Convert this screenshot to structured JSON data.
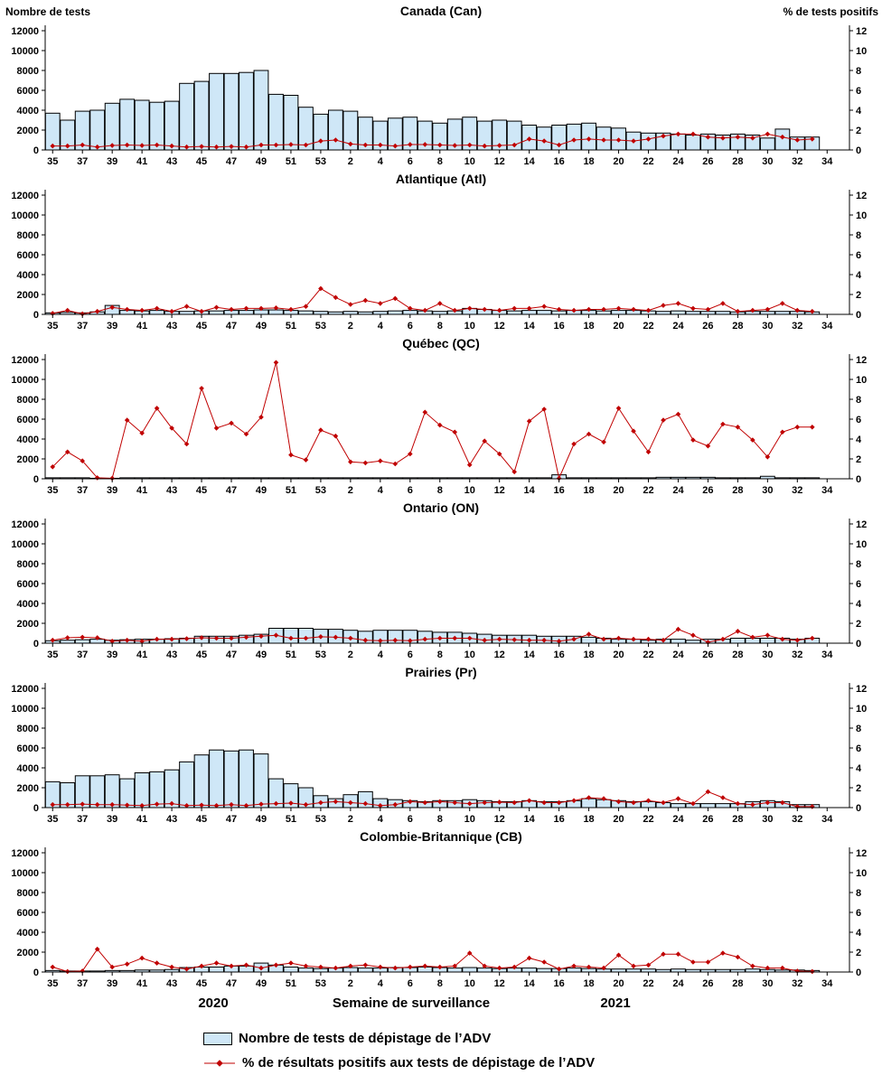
{
  "header": {
    "left_axis_title": "Nombre de tests",
    "right_axis_title": "% de tests positifs"
  },
  "xaxis": {
    "label": "Semaine de surveillance",
    "year_left": "2020",
    "year_right": "2021",
    "tick_labels": [
      "35",
      "37",
      "39",
      "41",
      "43",
      "45",
      "47",
      "49",
      "51",
      "53",
      "2",
      "4",
      "6",
      "8",
      "10",
      "12",
      "14",
      "16",
      "18",
      "20",
      "22",
      "24",
      "26",
      "28",
      "30",
      "32",
      "34"
    ]
  },
  "yaxis_left": {
    "min": 0,
    "max": 12000,
    "step": 2000
  },
  "yaxis_right": {
    "min": 0,
    "max": 12,
    "step": 2
  },
  "colors": {
    "bar_fill": "#cfe7f7",
    "bar_stroke": "#000000",
    "line": "#c00000"
  },
  "legend": [
    {
      "type": "bar",
      "label": "Nombre de tests de dépistage de l’ADV"
    },
    {
      "type": "line",
      "label": "% de résultats positifs aux tests de dépistage de l’ADV"
    }
  ],
  "chart_data": {
    "type": "bar+line multi-panel",
    "xlabel": "Semaine de surveillance",
    "ylabel_left": "Nombre de tests",
    "ylabel_right": "% de tests positifs",
    "ylim_left": [
      0,
      12000
    ],
    "ylim_right": [
      0,
      12
    ],
    "categories": [
      "35",
      "36",
      "37",
      "38",
      "39",
      "40",
      "41",
      "42",
      "43",
      "44",
      "45",
      "46",
      "47",
      "48",
      "49",
      "50",
      "51",
      "52",
      "53",
      "1",
      "2",
      "3",
      "4",
      "5",
      "6",
      "7",
      "8",
      "9",
      "10",
      "11",
      "12",
      "13",
      "14",
      "15",
      "16",
      "17",
      "18",
      "19",
      "20",
      "21",
      "22",
      "23",
      "24",
      "25",
      "26",
      "27",
      "28",
      "29",
      "30",
      "31",
      "32",
      "33"
    ],
    "panels": [
      {
        "title": "Canada (Can)",
        "bars": [
          3700,
          3000,
          3900,
          4000,
          4700,
          5100,
          5000,
          4800,
          4900,
          6700,
          6900,
          7700,
          7700,
          7800,
          8000,
          5600,
          5500,
          4300,
          3600,
          4000,
          3900,
          3300,
          2900,
          3200,
          3300,
          2900,
          2700,
          3100,
          3300,
          2900,
          3000,
          2900,
          2500,
          2300,
          2500,
          2600,
          2700,
          2300,
          2200,
          1800,
          1700,
          1700,
          1600,
          1500,
          1600,
          1500,
          1600,
          1500,
          1200,
          2100,
          1300,
          1300
        ],
        "line": [
          0.4,
          0.4,
          0.5,
          0.3,
          0.45,
          0.5,
          0.45,
          0.5,
          0.4,
          0.3,
          0.35,
          0.3,
          0.35,
          0.3,
          0.5,
          0.5,
          0.55,
          0.5,
          0.9,
          1.0,
          0.6,
          0.5,
          0.5,
          0.4,
          0.55,
          0.55,
          0.5,
          0.45,
          0.5,
          0.4,
          0.45,
          0.5,
          1.1,
          0.9,
          0.5,
          1.0,
          1.1,
          1.0,
          1.0,
          0.9,
          1.1,
          1.4,
          1.6,
          1.6,
          1.3,
          1.2,
          1.3,
          1.2,
          1.6,
          1.3,
          1.0,
          1.1
        ]
      },
      {
        "title": "Atlantique (Atl)",
        "bars": [
          150,
          200,
          150,
          250,
          900,
          400,
          350,
          400,
          300,
          300,
          350,
          350,
          400,
          400,
          450,
          450,
          400,
          350,
          300,
          250,
          300,
          250,
          300,
          350,
          400,
          350,
          300,
          350,
          600,
          500,
          400,
          350,
          400,
          400,
          350,
          400,
          400,
          350,
          400,
          400,
          350,
          300,
          350,
          300,
          300,
          300,
          250,
          300,
          300,
          300,
          300,
          250
        ],
        "line": [
          0.1,
          0.4,
          0.05,
          0.3,
          0.7,
          0.5,
          0.4,
          0.6,
          0.3,
          0.8,
          0.3,
          0.7,
          0.5,
          0.6,
          0.6,
          0.65,
          0.5,
          0.8,
          2.6,
          1.7,
          1.0,
          1.4,
          1.1,
          1.6,
          0.6,
          0.4,
          1.1,
          0.4,
          0.6,
          0.5,
          0.4,
          0.6,
          0.6,
          0.8,
          0.5,
          0.4,
          0.5,
          0.5,
          0.6,
          0.5,
          0.4,
          0.9,
          1.1,
          0.6,
          0.5,
          1.1,
          0.3,
          0.4,
          0.5,
          1.1,
          0.4,
          0.3
        ]
      },
      {
        "title": "Québec (QC)",
        "bars": [
          100,
          100,
          100,
          50,
          50,
          100,
          100,
          100,
          100,
          100,
          100,
          100,
          100,
          100,
          100,
          100,
          100,
          100,
          100,
          100,
          100,
          100,
          100,
          100,
          100,
          100,
          100,
          100,
          100,
          100,
          100,
          100,
          100,
          100,
          400,
          100,
          100,
          100,
          100,
          100,
          100,
          150,
          150,
          150,
          150,
          100,
          100,
          100,
          250,
          100,
          100,
          100
        ],
        "line": [
          1.2,
          2.7,
          1.8,
          0.1,
          0.05,
          5.9,
          4.6,
          7.1,
          5.1,
          3.5,
          9.1,
          5.1,
          5.6,
          4.5,
          6.2,
          11.7,
          2.4,
          1.9,
          4.9,
          4.3,
          1.7,
          1.6,
          1.8,
          1.5,
          2.5,
          6.7,
          5.4,
          4.7,
          1.4,
          3.8,
          2.5,
          0.7,
          5.8,
          7.0,
          0.05,
          3.5,
          4.5,
          3.7,
          7.1,
          4.8,
          2.7,
          5.9,
          6.5,
          3.9,
          3.3,
          5.5,
          5.2,
          3.9,
          2.2,
          4.7,
          5.2,
          5.2
        ]
      },
      {
        "title": "Ontario (ON)",
        "bars": [
          250,
          300,
          350,
          400,
          300,
          350,
          400,
          400,
          450,
          500,
          700,
          700,
          700,
          800,
          900,
          1500,
          1500,
          1500,
          1400,
          1400,
          1300,
          1200,
          1300,
          1300,
          1300,
          1200,
          1100,
          1100,
          1000,
          900,
          800,
          800,
          800,
          700,
          700,
          700,
          600,
          500,
          400,
          400,
          300,
          400,
          400,
          300,
          400,
          400,
          500,
          500,
          500,
          500,
          400,
          500
        ],
        "line": [
          0.3,
          0.55,
          0.6,
          0.55,
          0.2,
          0.3,
          0.2,
          0.4,
          0.4,
          0.45,
          0.55,
          0.5,
          0.5,
          0.6,
          0.7,
          0.8,
          0.5,
          0.5,
          0.65,
          0.6,
          0.5,
          0.3,
          0.25,
          0.3,
          0.25,
          0.4,
          0.5,
          0.5,
          0.5,
          0.3,
          0.4,
          0.35,
          0.3,
          0.3,
          0.2,
          0.4,
          0.9,
          0.4,
          0.5,
          0.4,
          0.4,
          0.3,
          1.4,
          0.8,
          0.1,
          0.4,
          1.2,
          0.6,
          0.8,
          0.4,
          0.3,
          0.5
        ]
      },
      {
        "title": "Prairies (Pr)",
        "bars": [
          2600,
          2500,
          3200,
          3200,
          3300,
          2900,
          3500,
          3600,
          3800,
          4600,
          5300,
          5800,
          5700,
          5800,
          5400,
          2900,
          2400,
          2000,
          1200,
          900,
          1300,
          1600,
          900,
          800,
          700,
          600,
          700,
          700,
          800,
          700,
          600,
          600,
          700,
          600,
          600,
          700,
          900,
          800,
          700,
          600,
          600,
          500,
          400,
          400,
          400,
          400,
          400,
          600,
          700,
          600,
          300,
          300
        ],
        "line": [
          0.3,
          0.3,
          0.35,
          0.3,
          0.3,
          0.25,
          0.2,
          0.35,
          0.4,
          0.2,
          0.25,
          0.2,
          0.3,
          0.2,
          0.35,
          0.4,
          0.45,
          0.3,
          0.5,
          0.6,
          0.5,
          0.4,
          0.2,
          0.3,
          0.6,
          0.5,
          0.6,
          0.5,
          0.4,
          0.5,
          0.55,
          0.5,
          0.7,
          0.5,
          0.5,
          0.7,
          1.0,
          0.9,
          0.6,
          0.5,
          0.7,
          0.5,
          0.9,
          0.4,
          1.6,
          1.0,
          0.4,
          0.3,
          0.5,
          0.5,
          0.1,
          0.1
        ]
      },
      {
        "title": "Colombie-Britannique (CB)",
        "bars": [
          150,
          100,
          100,
          100,
          150,
          150,
          200,
          200,
          250,
          450,
          500,
          500,
          600,
          600,
          900,
          700,
          500,
          400,
          350,
          400,
          450,
          400,
          400,
          450,
          450,
          500,
          450,
          400,
          450,
          400,
          350,
          400,
          400,
          350,
          350,
          400,
          350,
          300,
          300,
          300,
          300,
          250,
          300,
          250,
          250,
          250,
          250,
          300,
          250,
          200,
          200,
          150
        ],
        "line": [
          0.5,
          0.05,
          0.1,
          2.3,
          0.5,
          0.8,
          1.4,
          0.9,
          0.5,
          0.3,
          0.6,
          0.9,
          0.6,
          0.7,
          0.4,
          0.7,
          0.9,
          0.6,
          0.5,
          0.4,
          0.6,
          0.7,
          0.5,
          0.4,
          0.5,
          0.6,
          0.5,
          0.6,
          1.9,
          0.6,
          0.4,
          0.5,
          1.4,
          1.0,
          0.3,
          0.6,
          0.5,
          0.4,
          1.7,
          0.6,
          0.7,
          1.8,
          1.8,
          1.0,
          1.0,
          1.9,
          1.5,
          0.6,
          0.4,
          0.4,
          0.1,
          0.05
        ]
      }
    ]
  }
}
